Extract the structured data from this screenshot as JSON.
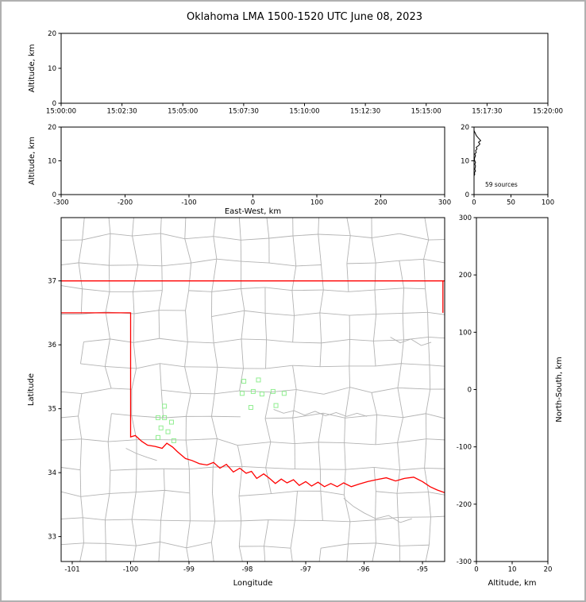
{
  "title": "Oklahoma LMA 1500-1520 UTC June 08, 2023",
  "colors": {
    "background": "#ffffff",
    "page_border": "#b0b0b0",
    "axis": "#000000",
    "county_lines": "#b3b3b3",
    "state_border": "#ff0000",
    "source_marker": "#90ee90",
    "histogram_trace": "#000000"
  },
  "chart_data": [
    {
      "id": "time_height",
      "type": "scatter",
      "panel": "top",
      "xlabel": "",
      "ylabel": "Altitude, km",
      "x_tick_labels": [
        "15:00:00",
        "15:02:30",
        "15:05:00",
        "15:07:30",
        "15:10:00",
        "15:12:30",
        "15:15:00",
        "15:17:30",
        "15:20:00"
      ],
      "y_ticks": [
        0,
        10,
        20
      ],
      "ylim": [
        0,
        20
      ],
      "points": []
    },
    {
      "id": "east_west_height",
      "type": "scatter",
      "panel": "middle-left",
      "xlabel": "East-West, km",
      "ylabel": "Altitude, km",
      "x_ticks": [
        -300,
        -200,
        -100,
        0,
        100,
        200,
        300
      ],
      "xlim": [
        -300,
        300
      ],
      "y_ticks": [
        0,
        10,
        20
      ],
      "ylim": [
        0,
        20
      ],
      "points": []
    },
    {
      "id": "altitude_histogram",
      "type": "line",
      "panel": "middle-right",
      "annotation": "59 sources",
      "xlabel": "",
      "ylabel": "",
      "x_ticks": [
        0,
        50,
        100
      ],
      "xlim": [
        0,
        100
      ],
      "y_ticks": [
        0,
        10,
        20
      ],
      "ylim": [
        0,
        20
      ],
      "profile_alt_count": [
        [
          0,
          0
        ],
        [
          5.5,
          0
        ],
        [
          6,
          1
        ],
        [
          6.5,
          0.5
        ],
        [
          7,
          2
        ],
        [
          7.5,
          1
        ],
        [
          8,
          1.5
        ],
        [
          8.5,
          2
        ],
        [
          9,
          1
        ],
        [
          9.5,
          2
        ],
        [
          10,
          1
        ],
        [
          10.5,
          0.5
        ],
        [
          11,
          1
        ],
        [
          11.5,
          2
        ],
        [
          12,
          1
        ],
        [
          12.5,
          3
        ],
        [
          13,
          2
        ],
        [
          13.5,
          4
        ],
        [
          14,
          3
        ],
        [
          14.5,
          6
        ],
        [
          15,
          8
        ],
        [
          15.5,
          6
        ],
        [
          16,
          9
        ],
        [
          16.5,
          7
        ],
        [
          17,
          5
        ],
        [
          17.5,
          3
        ],
        [
          18,
          2
        ],
        [
          18.5,
          1
        ],
        [
          19,
          0
        ]
      ]
    },
    {
      "id": "plan_view",
      "type": "scatter",
      "panel": "main",
      "xlabel": "Longitude",
      "ylabel": "Latitude",
      "x_ticks": [
        -101,
        -100,
        -99,
        -98,
        -97,
        -96,
        -95
      ],
      "xlim": [
        -101.19,
        -94.62
      ],
      "y_ticks": [
        33,
        34,
        35,
        36,
        37
      ],
      "ylim": [
        32.61,
        37.99
      ],
      "sources_lon_lat": [
        [
          -99.42,
          35.04
        ],
        [
          -99.53,
          34.86
        ],
        [
          -99.42,
          34.86
        ],
        [
          -99.3,
          34.79
        ],
        [
          -99.48,
          34.7
        ],
        [
          -99.36,
          34.64
        ],
        [
          -99.53,
          34.55
        ],
        [
          -99.26,
          34.5
        ],
        [
          -98.06,
          35.43
        ],
        [
          -97.81,
          35.45
        ],
        [
          -98.09,
          35.24
        ],
        [
          -97.9,
          35.27
        ],
        [
          -97.75,
          35.23
        ],
        [
          -97.56,
          35.27
        ],
        [
          -97.37,
          35.24
        ],
        [
          -97.94,
          35.02
        ],
        [
          -97.51,
          35.05
        ]
      ],
      "state_border_lines": [
        [
          [
            -101.3,
            37.0
          ],
          [
            -94.6,
            37.0
          ]
        ],
        [
          [
            -94.65,
            37.0
          ],
          [
            -94.65,
            36.5
          ]
        ],
        [
          [
            -101.3,
            36.5
          ],
          [
            -100.0,
            36.5
          ],
          [
            -100.0,
            34.56
          ],
          [
            -99.92,
            34.58
          ],
          [
            -99.81,
            34.49
          ],
          [
            -99.71,
            34.43
          ],
          [
            -99.58,
            34.41
          ],
          [
            -99.46,
            34.38
          ],
          [
            -99.38,
            34.46
          ],
          [
            -99.28,
            34.4
          ],
          [
            -99.2,
            34.33
          ],
          [
            -99.06,
            34.22
          ],
          [
            -98.95,
            34.19
          ],
          [
            -98.82,
            34.14
          ],
          [
            -98.69,
            34.12
          ],
          [
            -98.58,
            34.16
          ],
          [
            -98.47,
            34.07
          ],
          [
            -98.36,
            34.13
          ],
          [
            -98.24,
            34.01
          ],
          [
            -98.13,
            34.07
          ],
          [
            -98.02,
            33.99
          ],
          [
            -97.93,
            34.02
          ],
          [
            -97.84,
            33.91
          ],
          [
            -97.72,
            33.98
          ],
          [
            -97.62,
            33.91
          ],
          [
            -97.52,
            33.83
          ],
          [
            -97.42,
            33.9
          ],
          [
            -97.32,
            33.84
          ],
          [
            -97.21,
            33.89
          ],
          [
            -97.11,
            33.8
          ],
          [
            -97.0,
            33.86
          ],
          [
            -96.9,
            33.79
          ],
          [
            -96.79,
            33.85
          ],
          [
            -96.68,
            33.78
          ],
          [
            -96.57,
            33.83
          ],
          [
            -96.46,
            33.78
          ],
          [
            -96.35,
            33.84
          ],
          [
            -96.22,
            33.78
          ],
          [
            -96.09,
            33.82
          ],
          [
            -95.94,
            33.86
          ],
          [
            -95.79,
            33.89
          ],
          [
            -95.62,
            33.92
          ],
          [
            -95.46,
            33.87
          ],
          [
            -95.31,
            33.91
          ],
          [
            -95.15,
            33.93
          ],
          [
            -95.0,
            33.86
          ],
          [
            -94.87,
            33.78
          ],
          [
            -94.75,
            33.73
          ],
          [
            -94.6,
            33.68
          ]
        ]
      ],
      "rivers": [
        [
          [
            -97.55,
            34.99
          ],
          [
            -97.38,
            34.93
          ],
          [
            -97.2,
            34.97
          ],
          [
            -97.02,
            34.9
          ],
          [
            -96.84,
            34.96
          ],
          [
            -96.66,
            34.89
          ],
          [
            -96.48,
            34.94
          ],
          [
            -96.3,
            34.88
          ],
          [
            -96.12,
            34.93
          ],
          [
            -95.95,
            34.88
          ]
        ],
        [
          [
            -96.35,
            33.6
          ],
          [
            -96.18,
            33.47
          ],
          [
            -96.0,
            33.37
          ],
          [
            -95.8,
            33.28
          ],
          [
            -95.58,
            33.33
          ],
          [
            -95.38,
            33.22
          ],
          [
            -95.18,
            33.28
          ]
        ],
        [
          [
            -95.55,
            36.12
          ],
          [
            -95.38,
            36.03
          ],
          [
            -95.2,
            36.09
          ],
          [
            -95.02,
            35.99
          ],
          [
            -94.85,
            36.04
          ]
        ],
        [
          [
            -100.08,
            34.38
          ],
          [
            -99.9,
            34.3
          ],
          [
            -99.72,
            34.24
          ],
          [
            -99.55,
            34.19
          ]
        ]
      ]
    },
    {
      "id": "north_south_height",
      "type": "scatter",
      "panel": "right",
      "xlabel": "Altitude, km",
      "ylabel": "North-South, km",
      "x_ticks": [
        0,
        10,
        20
      ],
      "xlim": [
        0,
        20
      ],
      "y_ticks": [
        -300,
        -200,
        -100,
        0,
        100,
        200,
        300
      ],
      "ylim": [
        -300,
        300
      ],
      "points": []
    }
  ]
}
